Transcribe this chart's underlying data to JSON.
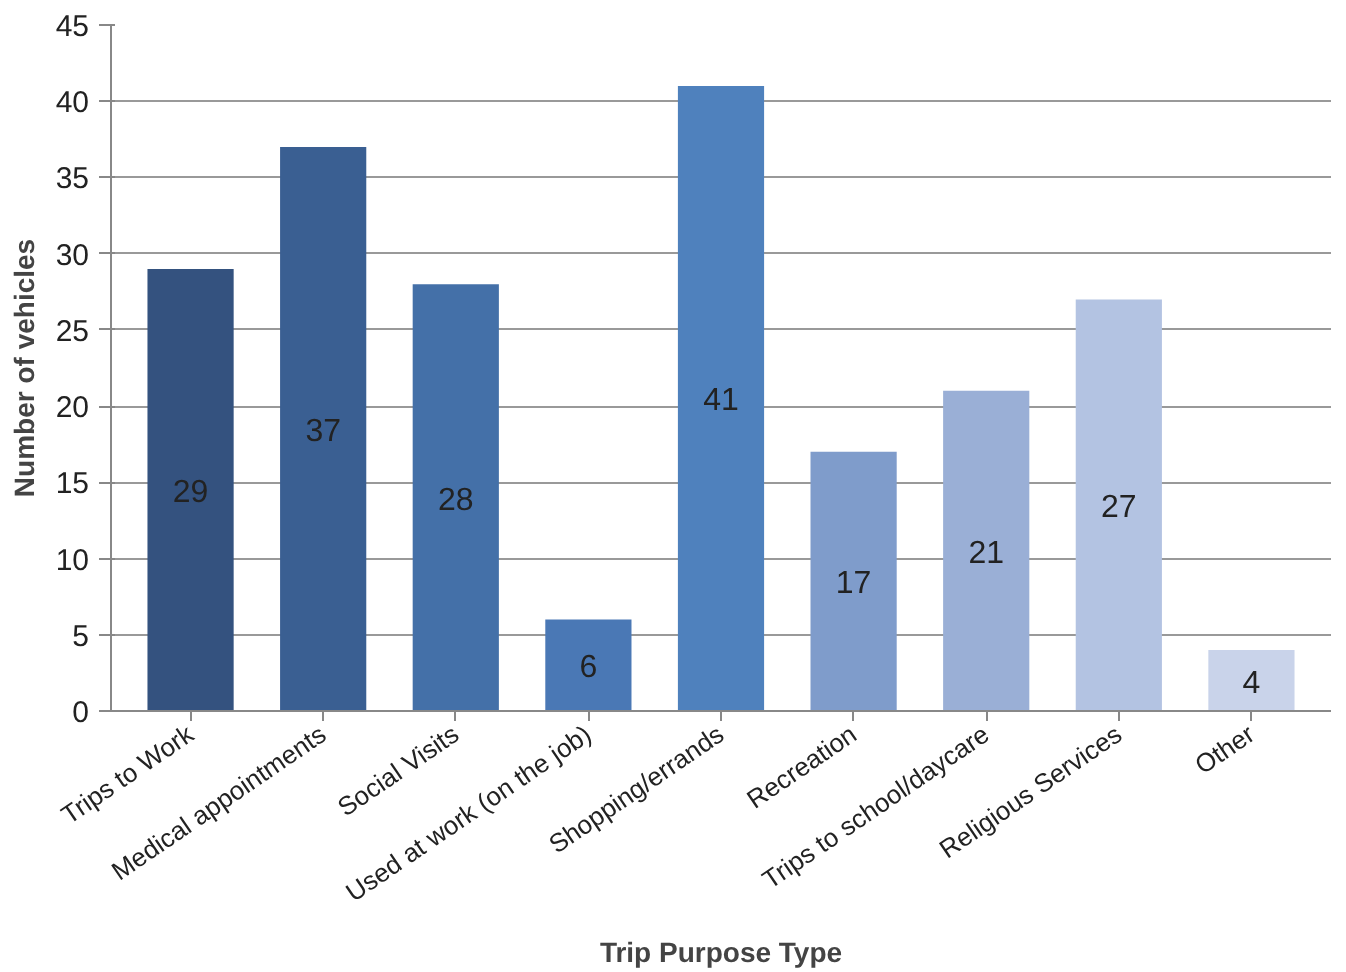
{
  "chart_data": {
    "type": "bar",
    "categories": [
      "Trips to Work",
      "Medical appointments",
      "Social Visits",
      "Used at work (on the job)",
      "Shopping/errands",
      "Recreation",
      "Trips to school/daycare",
      "Religious Services",
      "Other"
    ],
    "values": [
      29,
      37,
      28,
      6,
      41,
      17,
      21,
      27,
      4
    ],
    "colors": [
      "#34527f",
      "#3a5f92",
      "#4470a8",
      "#4a78b5",
      "#4f81bd",
      "#7f9ccb",
      "#9aafd6",
      "#b3c3e2",
      "#c9d3ea"
    ],
    "xlabel": "Trip Purpose Type",
    "ylabel": "Number of vehicles",
    "ylim": [
      0,
      45
    ],
    "yticks": [
      0,
      5,
      10,
      15,
      20,
      25,
      30,
      35,
      40,
      45
    ],
    "grid": "y",
    "data_labels": true
  }
}
